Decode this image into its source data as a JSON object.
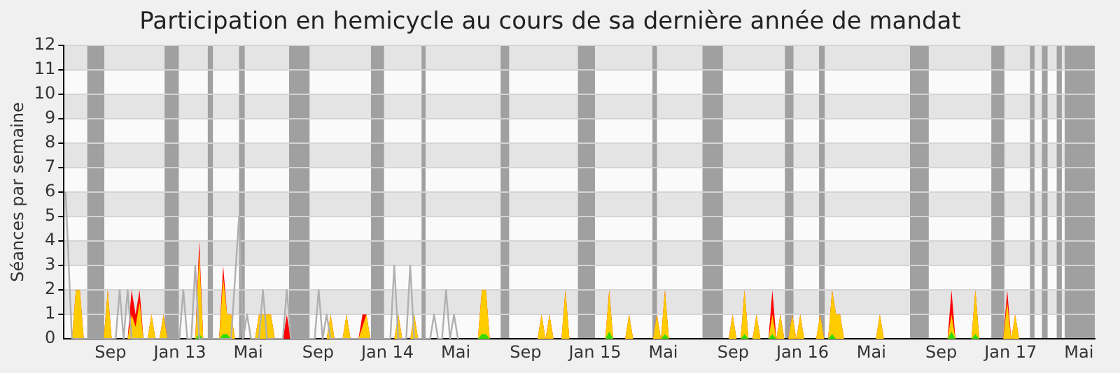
{
  "chart_data": {
    "type": "area",
    "title": "Participation en hemicycle au cours de sa dernière année de mandat",
    "ylabel": "Séances par semaine",
    "xlim": [
      "2012-06-25",
      "2017-06-12"
    ],
    "xticks": [
      {
        "value": "2012-09-15",
        "label": "Sep"
      },
      {
        "value": "2013-01-15",
        "label": "Jan 13"
      },
      {
        "value": "2013-05-15",
        "label": "Mai"
      },
      {
        "value": "2013-09-15",
        "label": "Sep"
      },
      {
        "value": "2014-01-15",
        "label": "Jan 14"
      },
      {
        "value": "2014-05-15",
        "label": "Mai"
      },
      {
        "value": "2014-09-15",
        "label": "Sep"
      },
      {
        "value": "2015-01-15",
        "label": "Jan 15"
      },
      {
        "value": "2015-05-15",
        "label": "Mai"
      },
      {
        "value": "2015-09-15",
        "label": "Sep"
      },
      {
        "value": "2016-01-15",
        "label": "Jan 16"
      },
      {
        "value": "2016-05-15",
        "label": "Mai"
      },
      {
        "value": "2016-09-15",
        "label": "Sep"
      },
      {
        "value": "2017-01-15",
        "label": "Jan 17"
      },
      {
        "value": "2017-05-15",
        "label": "Mai"
      }
    ],
    "ylim": [
      0,
      12
    ],
    "yticks": [
      0,
      1,
      2,
      3,
      4,
      5,
      6,
      7,
      8,
      9,
      10,
      11,
      12
    ],
    "grid": "y",
    "legend": false,
    "marker": "none",
    "series": [
      {
        "color": "#ff0000",
        "x": [
          "2012-07-09",
          "2012-07-16",
          "2012-07-23",
          "2012-07-30",
          "2012-09-03",
          "2012-09-10",
          "2012-09-17",
          "2012-10-15",
          "2012-10-22",
          "2012-10-29",
          "2012-11-05",
          "2012-11-12",
          "2012-11-19",
          "2012-11-26",
          "2012-12-03",
          "2012-12-10",
          "2012-12-17",
          "2012-12-24",
          "2013-02-11",
          "2013-02-18",
          "2013-02-25",
          "2013-03-25",
          "2013-04-01",
          "2013-04-08",
          "2013-04-15",
          "2013-04-22",
          "2013-05-27",
          "2013-06-03",
          "2013-06-10",
          "2013-06-17",
          "2013-06-24",
          "2013-07-01",
          "2013-07-15",
          "2013-07-22",
          "2013-07-29",
          "2013-09-30",
          "2013-10-07",
          "2013-10-14",
          "2013-10-28",
          "2013-11-04",
          "2013-11-11",
          "2013-11-25",
          "2013-12-02",
          "2013-12-09",
          "2013-12-16",
          "2014-01-27",
          "2014-02-03",
          "2014-02-10",
          "2014-02-24",
          "2014-03-03",
          "2014-03-10",
          "2014-06-23",
          "2014-06-30",
          "2014-07-07",
          "2014-07-14",
          "2014-10-06",
          "2014-10-13",
          "2014-10-20",
          "2014-10-27",
          "2014-11-03",
          "2014-11-17",
          "2014-11-24",
          "2014-12-01",
          "2015-02-02",
          "2015-02-09",
          "2015-02-16",
          "2015-03-09",
          "2015-03-16",
          "2015-03-23",
          "2015-04-27",
          "2015-05-04",
          "2015-05-11",
          "2015-05-18",
          "2015-05-25",
          "2015-09-07",
          "2015-09-14",
          "2015-09-21",
          "2015-09-28",
          "2015-10-05",
          "2015-10-12",
          "2015-10-19",
          "2015-10-26",
          "2015-11-02",
          "2015-11-16",
          "2015-11-23",
          "2015-11-30",
          "2015-12-07",
          "2015-12-14",
          "2015-12-21",
          "2015-12-28",
          "2016-01-04",
          "2016-01-11",
          "2016-01-18",
          "2016-02-08",
          "2016-02-15",
          "2016-02-22",
          "2016-02-29",
          "2016-03-07",
          "2016-03-14",
          "2016-03-21",
          "2016-03-28",
          "2016-05-23",
          "2016-05-30",
          "2016-06-06",
          "2016-09-26",
          "2016-10-03",
          "2016-10-10",
          "2016-11-07",
          "2016-11-14",
          "2016-11-21",
          "2017-01-02",
          "2017-01-09",
          "2017-01-16",
          "2017-01-23",
          "2017-01-30"
        ],
        "values": [
          0,
          2,
          2,
          0,
          0,
          2,
          0,
          0,
          2,
          1,
          2,
          0,
          0,
          1,
          0,
          0,
          1,
          0,
          0,
          4,
          0,
          0,
          3,
          1,
          1,
          0,
          0,
          1,
          1,
          1,
          1,
          0,
          0,
          1,
          0,
          0,
          1,
          0,
          0,
          1,
          0,
          0,
          1,
          1,
          0,
          0,
          1,
          0,
          0,
          1,
          0,
          0,
          2,
          2,
          0,
          0,
          1,
          0,
          1,
          0,
          0,
          2,
          0,
          0,
          2,
          0,
          0,
          1,
          0,
          0,
          1,
          0,
          2,
          0,
          0,
          1,
          0,
          0,
          2,
          0,
          0,
          1,
          0,
          0,
          2,
          0,
          1,
          0,
          0,
          1,
          0,
          1,
          0,
          0,
          1,
          0,
          0,
          2,
          1,
          1,
          0,
          0,
          1,
          0,
          0,
          2,
          0,
          0,
          2,
          0,
          0,
          2,
          0,
          1,
          0
        ]
      },
      {
        "color": "#ffcc00",
        "x": [
          "2012-07-09",
          "2012-07-16",
          "2012-07-23",
          "2012-07-30",
          "2012-09-03",
          "2012-09-10",
          "2012-09-17",
          "2012-10-15",
          "2012-10-22",
          "2012-10-29",
          "2012-11-05",
          "2012-11-12",
          "2012-11-19",
          "2012-11-26",
          "2012-12-03",
          "2012-12-10",
          "2012-12-17",
          "2012-12-24",
          "2013-02-11",
          "2013-02-18",
          "2013-02-25",
          "2013-03-25",
          "2013-04-01",
          "2013-04-08",
          "2013-04-15",
          "2013-04-22",
          "2013-05-27",
          "2013-06-03",
          "2013-06-10",
          "2013-06-17",
          "2013-06-24",
          "2013-07-01",
          "2013-07-15",
          "2013-07-22",
          "2013-07-29",
          "2013-09-30",
          "2013-10-07",
          "2013-10-14",
          "2013-10-28",
          "2013-11-04",
          "2013-11-11",
          "2013-11-25",
          "2013-12-02",
          "2013-12-09",
          "2013-12-16",
          "2014-01-27",
          "2014-02-03",
          "2014-02-10",
          "2014-02-24",
          "2014-03-03",
          "2014-03-10",
          "2014-06-23",
          "2014-06-30",
          "2014-07-07",
          "2014-07-14",
          "2014-10-06",
          "2014-10-13",
          "2014-10-20",
          "2014-10-27",
          "2014-11-03",
          "2014-11-17",
          "2014-11-24",
          "2014-12-01",
          "2015-02-02",
          "2015-02-09",
          "2015-02-16",
          "2015-03-09",
          "2015-03-16",
          "2015-03-23",
          "2015-04-27",
          "2015-05-04",
          "2015-05-11",
          "2015-05-18",
          "2015-05-25",
          "2015-09-07",
          "2015-09-14",
          "2015-09-21",
          "2015-09-28",
          "2015-10-05",
          "2015-10-12",
          "2015-10-19",
          "2015-10-26",
          "2015-11-02",
          "2015-11-16",
          "2015-11-23",
          "2015-11-30",
          "2015-12-07",
          "2015-12-14",
          "2015-12-21",
          "2015-12-28",
          "2016-01-04",
          "2016-01-11",
          "2016-01-18",
          "2016-02-08",
          "2016-02-15",
          "2016-02-22",
          "2016-02-29",
          "2016-03-07",
          "2016-03-14",
          "2016-03-21",
          "2016-03-28",
          "2016-05-23",
          "2016-05-30",
          "2016-06-06",
          "2016-09-26",
          "2016-10-03",
          "2016-10-10",
          "2016-11-07",
          "2016-11-14",
          "2016-11-21",
          "2017-01-02",
          "2017-01-09",
          "2017-01-16",
          "2017-01-23",
          "2017-01-30"
        ],
        "values": [
          0,
          2,
          2,
          0,
          0,
          2,
          0,
          0,
          1,
          0.5,
          1.5,
          0,
          0,
          1,
          0,
          0,
          1,
          0,
          0,
          3.5,
          0,
          0,
          2.5,
          1,
          1,
          0,
          0,
          1,
          1,
          1,
          1,
          0,
          0,
          0,
          0,
          0,
          1,
          0,
          0,
          1,
          0,
          0,
          0.5,
          1,
          0,
          0,
          1,
          0,
          0,
          1,
          0,
          0,
          2,
          2,
          0,
          0,
          1,
          0,
          1,
          0,
          0,
          2,
          0,
          0,
          2,
          0,
          0,
          1,
          0,
          0,
          1,
          0,
          2,
          0,
          0,
          1,
          0,
          0,
          2,
          0,
          0,
          1,
          0,
          0,
          1,
          0,
          1,
          0,
          0,
          1,
          0,
          1,
          0,
          0,
          1,
          0,
          0,
          2,
          1,
          1,
          0,
          0,
          1,
          0,
          0,
          1,
          0,
          0,
          2,
          0,
          0,
          1.5,
          0,
          1,
          0
        ]
      },
      {
        "color": "#33dd00",
        "x": [
          "2013-02-11",
          "2013-02-18",
          "2013-02-25",
          "2013-03-25",
          "2013-04-01",
          "2013-04-08",
          "2013-04-15",
          "2014-06-23",
          "2014-06-30",
          "2014-07-07",
          "2014-07-14",
          "2015-02-02",
          "2015-02-09",
          "2015-02-16",
          "2015-05-11",
          "2015-05-18",
          "2015-05-25",
          "2015-09-28",
          "2015-10-05",
          "2015-10-12",
          "2015-11-16",
          "2015-11-23",
          "2015-11-30",
          "2016-02-29",
          "2016-03-07",
          "2016-03-14",
          "2016-09-26",
          "2016-10-03",
          "2016-10-10",
          "2016-11-07",
          "2016-11-14",
          "2016-11-21"
        ],
        "values": [
          0,
          0.2,
          0,
          0,
          0.2,
          0.2,
          0,
          0,
          0.2,
          0.2,
          0,
          0,
          0.3,
          0,
          0,
          0.2,
          0,
          0,
          0.2,
          0,
          0,
          0.2,
          0,
          0,
          0.2,
          0,
          0,
          0.3,
          0,
          0,
          0.2,
          0
        ]
      },
      {
        "type": "line",
        "color": "#b0b0b0",
        "x": [
          "2012-06-28",
          "2012-07-09",
          "2012-09-24",
          "2012-10-01",
          "2012-10-08",
          "2012-10-15",
          "2012-10-22",
          "2013-01-14",
          "2013-01-21",
          "2013-01-28",
          "2013-02-04",
          "2013-02-11",
          "2013-02-18",
          "2013-04-15",
          "2013-04-29",
          "2013-05-06",
          "2013-05-13",
          "2013-05-20",
          "2013-06-03",
          "2013-06-10",
          "2013-06-17",
          "2013-07-15",
          "2013-07-22",
          "2013-07-29",
          "2013-09-09",
          "2013-09-16",
          "2013-09-23",
          "2013-09-30",
          "2013-10-07",
          "2014-01-20",
          "2014-01-27",
          "2014-02-03",
          "2014-02-17",
          "2014-02-24",
          "2014-03-03",
          "2014-03-31",
          "2014-04-07",
          "2014-04-14",
          "2014-04-21",
          "2014-04-28",
          "2014-05-05",
          "2014-05-12",
          "2014-05-19"
        ],
        "values": [
          6,
          0,
          0,
          2,
          0,
          2,
          0,
          0,
          2,
          0,
          0,
          3,
          0,
          0,
          5,
          0,
          1,
          0,
          0,
          2,
          0,
          0,
          2,
          0,
          0,
          2,
          0,
          1,
          0,
          0,
          3,
          0,
          0,
          3,
          0,
          0,
          1,
          0,
          0,
          2,
          0,
          1,
          0
        ]
      }
    ],
    "bands": [
      {
        "axis": "x",
        "from": "2012-08-05",
        "to": "2012-09-04",
        "color": "#a0a0a0"
      },
      {
        "axis": "x",
        "from": "2012-12-19",
        "to": "2013-01-13",
        "color": "#a0a0a0"
      },
      {
        "axis": "x",
        "from": "2013-03-05",
        "to": "2013-03-14",
        "color": "#a0a0a0"
      },
      {
        "axis": "x",
        "from": "2013-04-29",
        "to": "2013-05-09",
        "color": "#a0a0a0"
      },
      {
        "axis": "x",
        "from": "2013-07-26",
        "to": "2013-08-31",
        "color": "#a0a0a0"
      },
      {
        "axis": "x",
        "from": "2013-12-17",
        "to": "2014-01-09",
        "color": "#a0a0a0"
      },
      {
        "axis": "x",
        "from": "2014-03-16",
        "to": "2014-03-23",
        "color": "#a0a0a0"
      },
      {
        "axis": "x",
        "from": "2014-08-02",
        "to": "2014-08-17",
        "color": "#a0a0a0"
      },
      {
        "axis": "x",
        "from": "2014-12-16",
        "to": "2015-01-15",
        "color": "#a0a0a0"
      },
      {
        "axis": "x",
        "from": "2015-04-26",
        "to": "2015-05-04",
        "color": "#a0a0a0"
      },
      {
        "axis": "x",
        "from": "2015-07-23",
        "to": "2015-08-28",
        "color": "#a0a0a0"
      },
      {
        "axis": "x",
        "from": "2015-12-15",
        "to": "2015-12-30",
        "color": "#a0a0a0"
      },
      {
        "axis": "x",
        "from": "2016-02-13",
        "to": "2016-02-23",
        "color": "#a0a0a0"
      },
      {
        "axis": "x",
        "from": "2016-07-22",
        "to": "2016-08-24",
        "color": "#a0a0a0"
      },
      {
        "axis": "x",
        "from": "2016-12-12",
        "to": "2017-01-04",
        "color": "#a0a0a0"
      },
      {
        "axis": "x",
        "from": "2017-02-18",
        "to": "2017-02-26",
        "color": "#a0a0a0"
      },
      {
        "axis": "x",
        "from": "2017-03-11",
        "to": "2017-03-21",
        "color": "#a0a0a0"
      },
      {
        "axis": "x",
        "from": "2017-04-06",
        "to": "2017-04-15",
        "color": "#a0a0a0"
      },
      {
        "axis": "x",
        "from": "2017-04-20",
        "to": "2017-06-12",
        "color": "#a0a0a0"
      }
    ]
  }
}
